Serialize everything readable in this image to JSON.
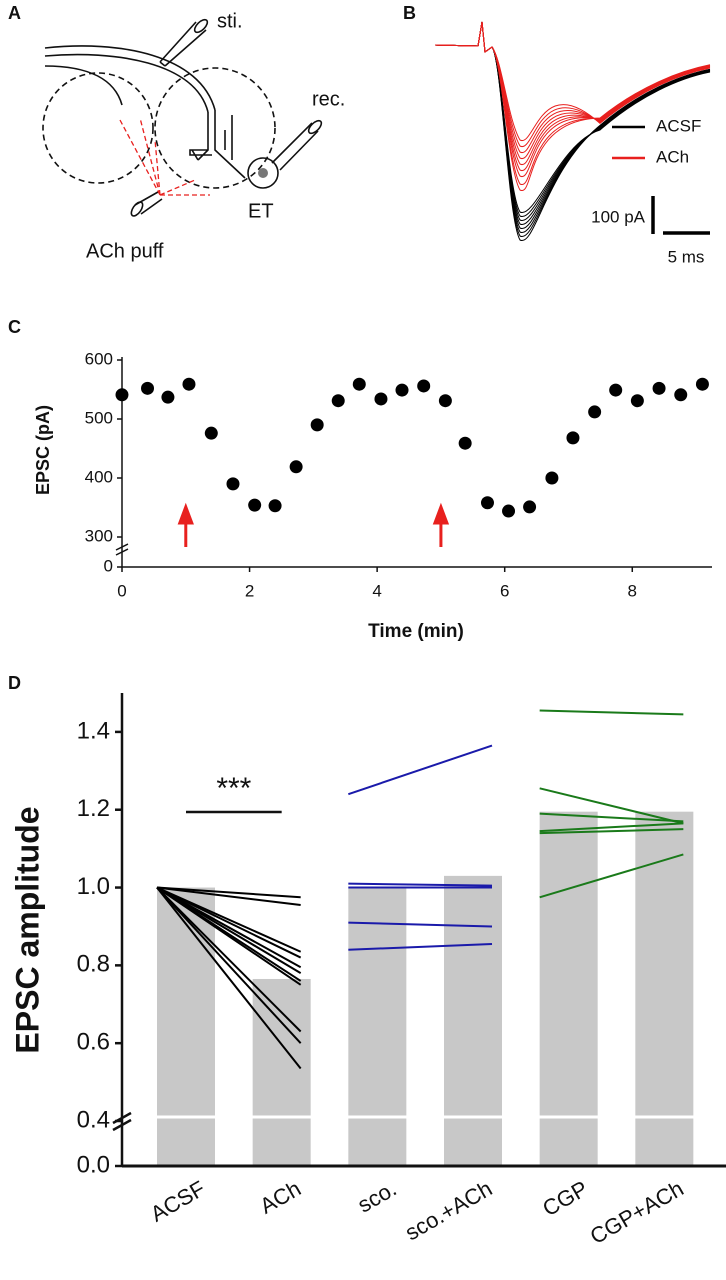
{
  "chart_data": [
    {
      "type": "diagram",
      "panel": "A",
      "labels": [
        "sti.",
        "rec.",
        "ET",
        "ACh puff"
      ]
    },
    {
      "type": "traces",
      "panel": "B",
      "series": [
        {
          "name": "ACSF",
          "color": "#000000"
        },
        {
          "name": "ACh",
          "color": "#e8201e"
        }
      ],
      "scale_labels": [
        "100 pA",
        "5 ms"
      ]
    },
    {
      "type": "scatter",
      "panel": "C",
      "y_label": "EPSC (pA)",
      "x_label": "Time (min)",
      "color": "#000000",
      "x": [
        0,
        0.4,
        0.72,
        1.05,
        1.4,
        1.74,
        2.08,
        2.4,
        2.73,
        3.06,
        3.39,
        3.72,
        4.06,
        4.39,
        4.73,
        5.07,
        5.38,
        5.73,
        6.06,
        6.39,
        6.74,
        7.07,
        7.41,
        7.74,
        8.08,
        8.42,
        8.76,
        9.1
      ],
      "values": [
        541,
        552,
        537,
        559,
        476,
        390,
        354,
        353,
        419,
        490,
        531,
        559,
        534,
        549,
        556,
        531,
        459,
        358,
        344,
        351,
        400,
        468,
        512,
        549,
        531,
        552,
        541,
        559
      ],
      "xlim": [
        0,
        9.25
      ],
      "xticks": [
        0,
        2,
        4,
        6,
        8
      ],
      "ylim": [
        0,
        600
      ],
      "ybreak": [
        0,
        300
      ],
      "yticks": [
        0,
        300,
        400,
        500,
        600
      ],
      "arrows_x": [
        1,
        5
      ],
      "arrow_color": "#e8201e"
    },
    {
      "type": "bar",
      "panel": "D",
      "y_label": "EPSC amplitude",
      "color": "#c8c8c8",
      "categories": [
        "ACSF",
        "ACh",
        "sco.",
        "sco.+ACh",
        "CGP",
        "CGP+ACh"
      ],
      "values": [
        1.0,
        0.765,
        1.0,
        1.03,
        1.195,
        1.195
      ],
      "ylim": [
        0,
        1.5
      ],
      "ybreak": [
        0,
        0.4
      ],
      "yticks": [
        {
          "value": 0,
          "label": "0.0"
        },
        0.4,
        0.6,
        0.8,
        {
          "value": 1,
          "label": "1.0"
        },
        1.2,
        1.4
      ],
      "paired": [
        {
          "color": "#000000",
          "values": [
            [
              1.0,
              0.975
            ],
            [
              1.0,
              0.955
            ],
            [
              1.0,
              0.835
            ],
            [
              1.0,
              0.82
            ],
            [
              1.0,
              0.795
            ],
            [
              1.0,
              0.78
            ],
            [
              1.0,
              0.76
            ],
            [
              1.0,
              0.75
            ],
            [
              1.0,
              0.63
            ],
            [
              1.0,
              0.6
            ],
            [
              1.0,
              0.535
            ]
          ]
        },
        {
          "color": "#1a1aaa",
          "values": [
            [
              1.24,
              1.365
            ],
            [
              1.01,
              1.005
            ],
            [
              1.0,
              1.0
            ],
            [
              0.91,
              0.9
            ],
            [
              0.84,
              0.855
            ]
          ]
        },
        {
          "color": "#1a7a1a",
          "values": [
            [
              1.455,
              1.445
            ],
            [
              1.255,
              1.165
            ],
            [
              1.19,
              1.17
            ],
            [
              1.145,
              1.165
            ],
            [
              1.14,
              1.15
            ],
            [
              0.975,
              1.085
            ]
          ]
        }
      ],
      "annotation": "***"
    }
  ]
}
